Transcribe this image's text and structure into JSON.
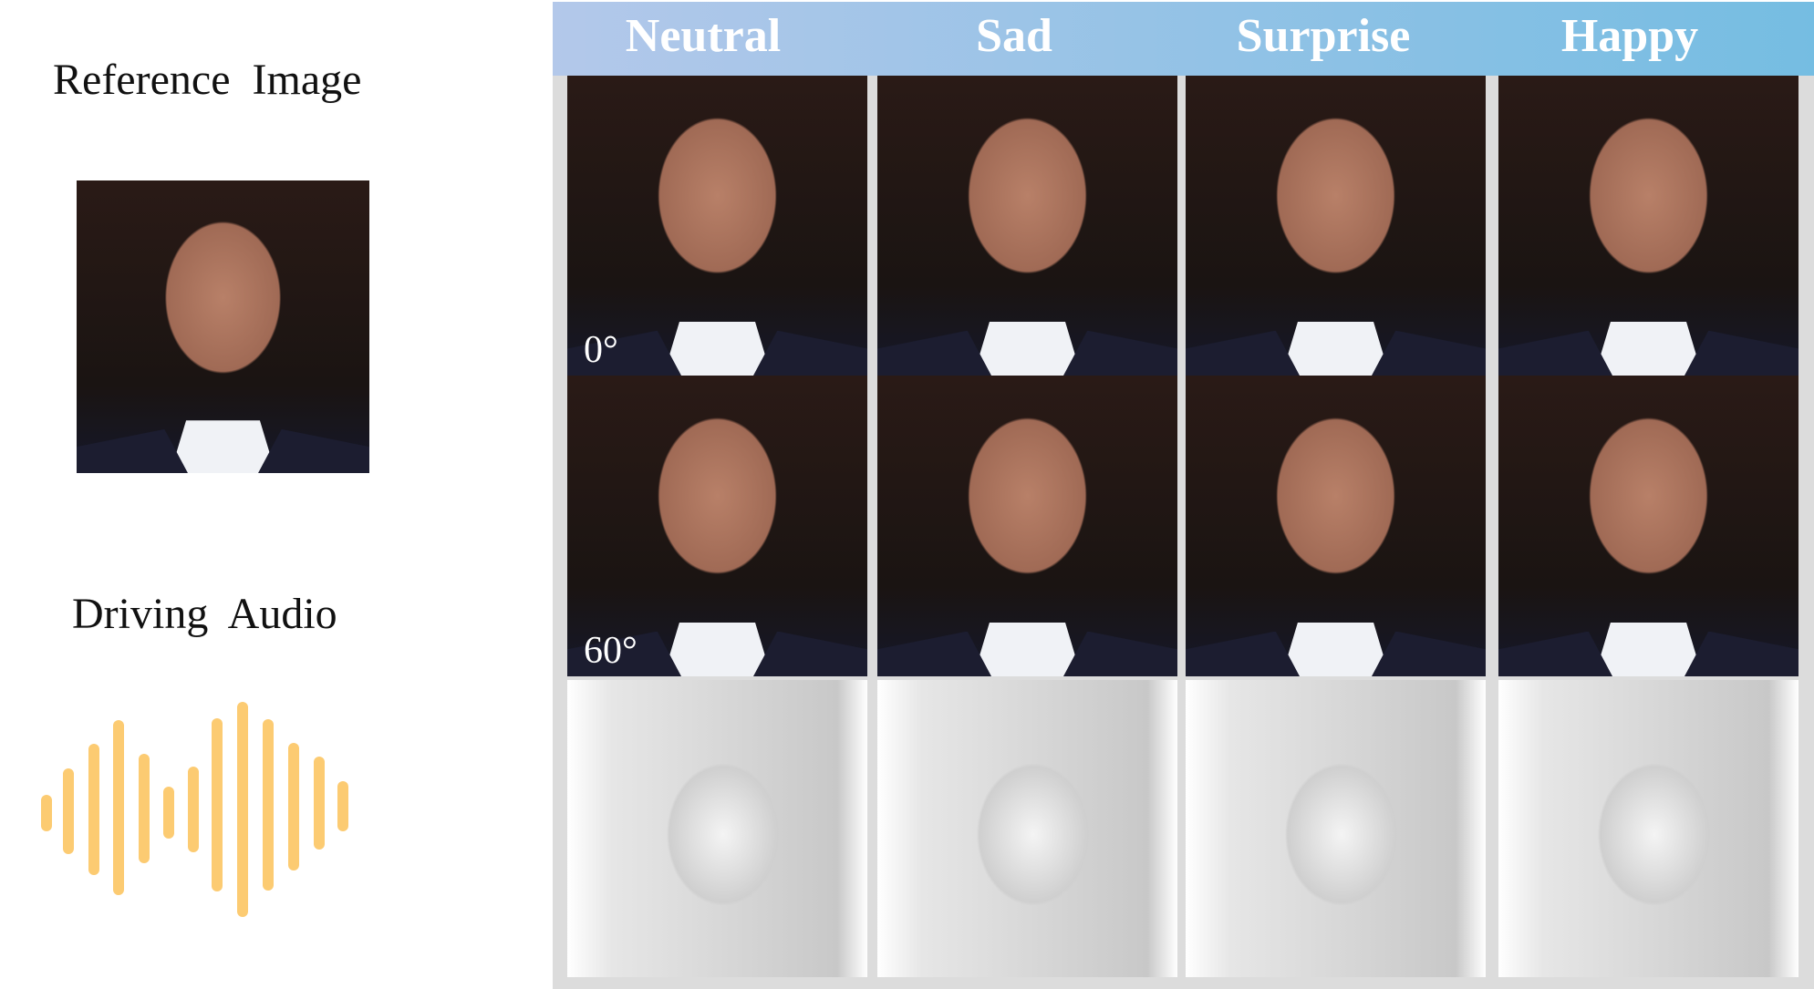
{
  "left": {
    "reference_label": "Reference  Image",
    "audio_label": "Driving  Audio",
    "audio_color": "#fccb72"
  },
  "header": {
    "columns": [
      "Neutral",
      "Sad",
      "Surprise",
      "Happy"
    ],
    "gradient": [
      "#b3c8ea",
      "#75bde2"
    ]
  },
  "rows": [
    {
      "angle": "0°",
      "kind": "photo"
    },
    {
      "angle": "60°",
      "kind": "photo"
    },
    {
      "angle": "",
      "kind": "mesh"
    }
  ]
}
